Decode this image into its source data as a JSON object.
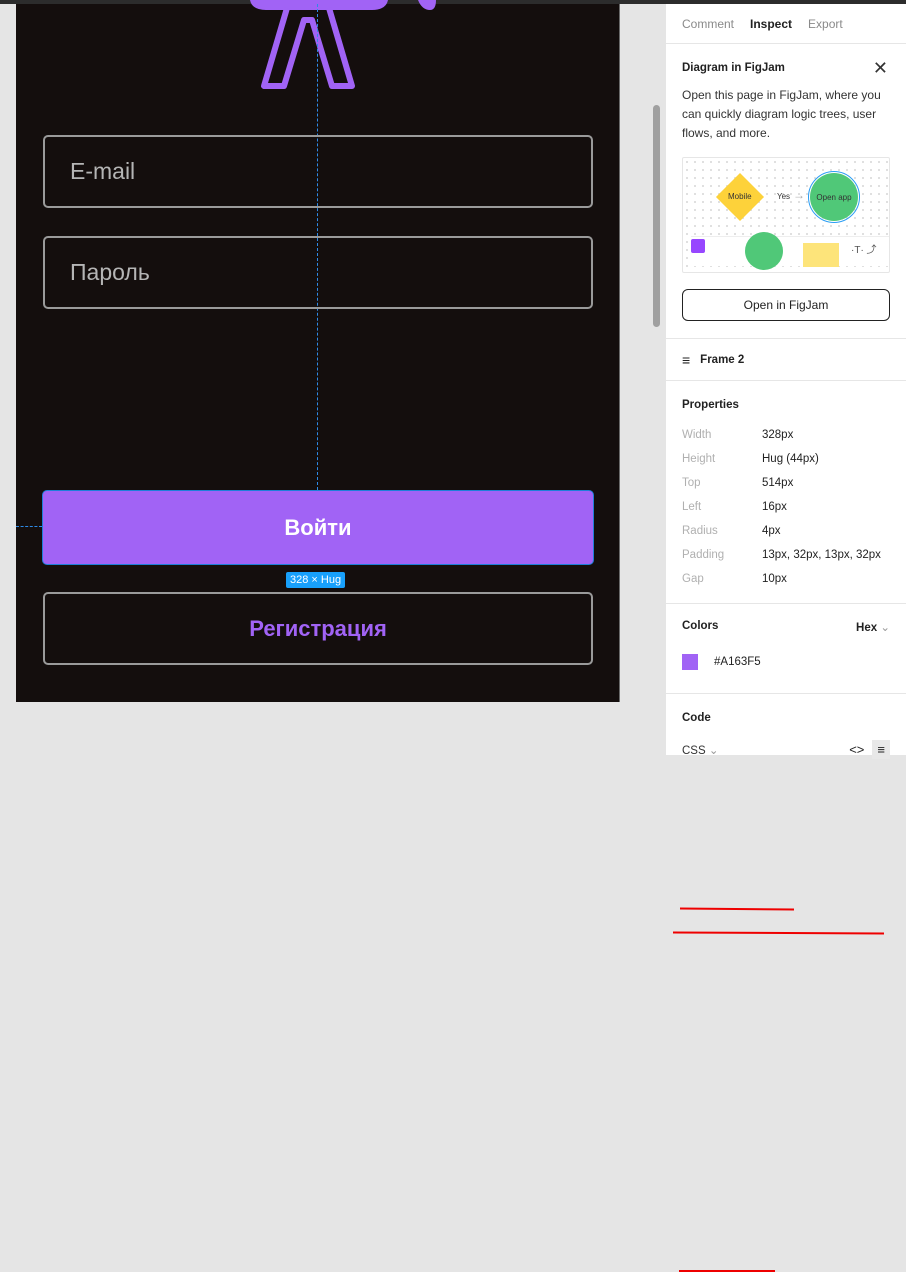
{
  "canvas": {
    "frame_bg": "#140e0d",
    "email_placeholder": "E-mail",
    "password_placeholder": "Пароль",
    "login_label": "Войти",
    "register_label": "Регистрация",
    "size_badge": "328 × Hug",
    "accent": "#A163F5"
  },
  "panel": {
    "tabs": [
      {
        "label": "Comment"
      },
      {
        "label": "Inspect"
      },
      {
        "label": "Export"
      }
    ],
    "figjam": {
      "title": "Diagram in FigJam",
      "description": "Open this page in FigJam, where you can quickly diagram logic trees, user flows, and more.",
      "preview": {
        "diamond": "Mobile",
        "arrow": "Yes",
        "circle": "Open app"
      },
      "button": "Open in FigJam"
    },
    "layer": {
      "icon": "auto-layout-icon",
      "name": "Frame 2"
    },
    "properties": {
      "title": "Properties",
      "rows": [
        {
          "k": "Width",
          "v": "328px"
        },
        {
          "k": "Height",
          "v": "Hug (44px)"
        },
        {
          "k": "Top",
          "v": "514px"
        },
        {
          "k": "Left",
          "v": "16px"
        },
        {
          "k": "Radius",
          "v": "4px"
        },
        {
          "k": "Padding",
          "v": "13px, 32px, 13px, 32px"
        },
        {
          "k": "Gap",
          "v": "10px"
        }
      ]
    },
    "colors": {
      "title": "Colors",
      "format": "Hex",
      "swatch": "#A163F5",
      "value": "#A163F5"
    },
    "code": {
      "title": "Code",
      "language": "CSS"
    }
  }
}
